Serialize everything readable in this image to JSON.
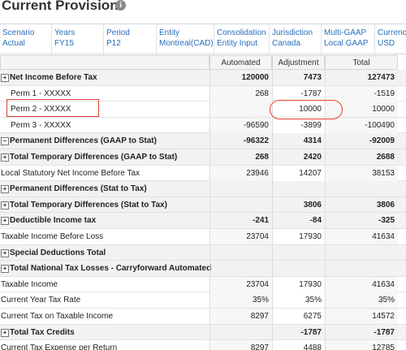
{
  "header": {
    "title": "Current Provision"
  },
  "pov": [
    {
      "label": "Scenario",
      "value": "Actual"
    },
    {
      "label": "Years",
      "value": "FY15"
    },
    {
      "label": "Period",
      "value": "P12"
    },
    {
      "label": "Entity",
      "value": "Montreal(CAD)"
    },
    {
      "label": "Consolidation",
      "value": "Entity Input"
    },
    {
      "label": "Jurisdiction",
      "value": "Canada"
    },
    {
      "label": "Multi-GAAP",
      "value": "Local GAAP"
    },
    {
      "label": "Currency",
      "value": "USD"
    }
  ],
  "table": {
    "columns": [
      "Automated",
      "Adjustment",
      "Total"
    ],
    "rows": [
      {
        "label": "Net Income Before Tax",
        "expand": "+",
        "bold": true,
        "cells": [
          "120000",
          "7473",
          "127473"
        ]
      },
      {
        "label": "Perm 1 - XXXXX",
        "indent": true,
        "cells": [
          "268",
          "-1787",
          "-1519"
        ]
      },
      {
        "label": "Perm 2 - XXXXX",
        "indent": true,
        "cells": [
          null,
          "10000",
          "10000"
        ]
      },
      {
        "label": "Perm 3 - XXXXX",
        "indent": true,
        "cells": [
          "-96590",
          "-3899",
          "-100490"
        ]
      },
      {
        "label": "Permanent Differences (GAAP to Stat)",
        "expand": "−",
        "bold": true,
        "cells": [
          "-96322",
          "4314",
          "-92009"
        ]
      },
      {
        "label": "Total Temporary Differences (GAAP to Stat)",
        "expand": "+",
        "bold": true,
        "cells": [
          "268",
          "2420",
          "2688"
        ]
      },
      {
        "label": "Local Statutory Net Income Before Tax",
        "cells": [
          "23946",
          "14207",
          "38153"
        ]
      },
      {
        "label": "Permanent Differences (Stat to Tax)",
        "expand": "+",
        "bold": true,
        "cells": [
          null,
          null,
          null
        ]
      },
      {
        "label": "Total Temporary Differences (Stat to Tax)",
        "expand": "+",
        "bold": true,
        "cells": [
          null,
          "3806",
          "3806"
        ]
      },
      {
        "label": "Deductible Income tax",
        "expand": "+",
        "bold": true,
        "cells": [
          "-241",
          "-84",
          "-325"
        ]
      },
      {
        "label": "Taxable Income Before Loss",
        "cells": [
          "23704",
          "17930",
          "41634"
        ]
      },
      {
        "label": "Special Deductions Total",
        "expand": "+",
        "bold": true,
        "cells": [
          null,
          null,
          null
        ]
      },
      {
        "label": "Total National Tax Losses - Carryforward Automated",
        "expand": "+",
        "bold": true,
        "cells": [
          null,
          null,
          null
        ]
      },
      {
        "label": "Taxable Income",
        "cells": [
          "23704",
          "17930",
          "41634"
        ]
      },
      {
        "label": "Current Year Tax Rate",
        "cells": [
          "35%",
          "35%",
          "35%"
        ]
      },
      {
        "label": "Current Tax on Taxable Income",
        "cells": [
          "8297",
          "6275",
          "14572"
        ]
      },
      {
        "label": "Total Tax Credits",
        "expand": "+",
        "bold": true,
        "cells": [
          null,
          "-1787",
          "-1787"
        ]
      },
      {
        "label": "Current Tax Expense per Return",
        "cells": [
          "8297",
          "4488",
          "12785"
        ]
      }
    ]
  }
}
